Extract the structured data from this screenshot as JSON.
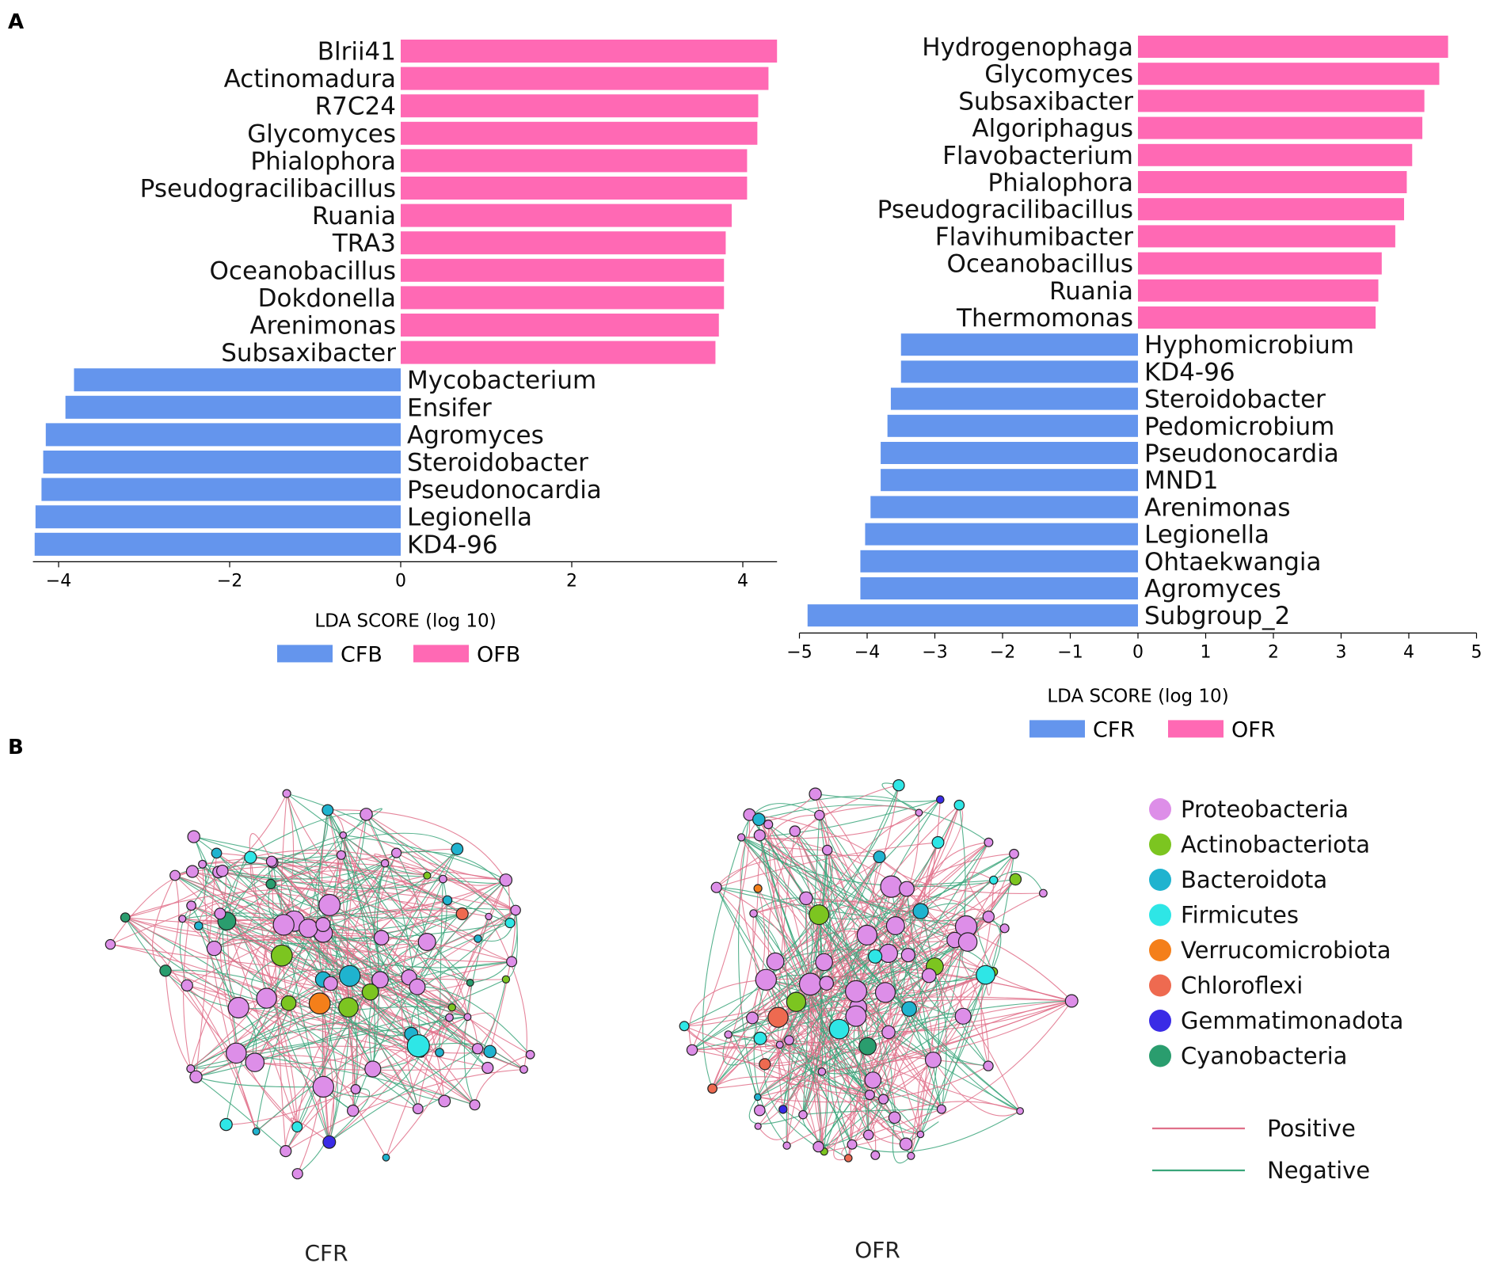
{
  "panel_labels": {
    "a": "A",
    "b": "B"
  },
  "colors": {
    "negative_bar": "#6495ED",
    "positive_bar": "#FF69B4",
    "positive_edge": "#E0708A",
    "negative_edge": "#3AA57A"
  },
  "chart_data": [
    {
      "type": "bar",
      "orientation": "horizontal",
      "title": "",
      "xlabel": "LDA SCORE (log 10)",
      "xlim": [
        -4.3,
        4.4
      ],
      "xticks": [
        -4,
        -2,
        0,
        2,
        4
      ],
      "xtick_labels": [
        "−4",
        "−2",
        "0",
        "2",
        "4"
      ],
      "legend": [
        {
          "label": "CFB",
          "color": "#6495ED"
        },
        {
          "label": "OFB",
          "color": "#FF69B4"
        }
      ],
      "bars": [
        {
          "label": "Blrii41",
          "value": 4.4,
          "group": "OFB"
        },
        {
          "label": "Actinomadura",
          "value": 4.3,
          "group": "OFB"
        },
        {
          "label": "R7C24",
          "value": 4.18,
          "group": "OFB"
        },
        {
          "label": "Glycomyces",
          "value": 4.17,
          "group": "OFB"
        },
        {
          "label": "Phialophora",
          "value": 4.05,
          "group": "OFB"
        },
        {
          "label": "Pseudogracilibacillus",
          "value": 4.05,
          "group": "OFB"
        },
        {
          "label": "Ruania",
          "value": 3.87,
          "group": "OFB"
        },
        {
          "label": "TRA3",
          "value": 3.8,
          "group": "OFB"
        },
        {
          "label": "Oceanobacillus",
          "value": 3.78,
          "group": "OFB"
        },
        {
          "label": "Dokdonella",
          "value": 3.78,
          "group": "OFB"
        },
        {
          "label": "Arenimonas",
          "value": 3.72,
          "group": "OFB"
        },
        {
          "label": "Subsaxibacter",
          "value": 3.68,
          "group": "OFB"
        },
        {
          "label": "Mycobacterium",
          "value": -3.82,
          "group": "CFB"
        },
        {
          "label": "Ensifer",
          "value": -3.92,
          "group": "CFB"
        },
        {
          "label": "Agromyces",
          "value": -4.15,
          "group": "CFB"
        },
        {
          "label": "Steroidobacter",
          "value": -4.18,
          "group": "CFB"
        },
        {
          "label": "Pseudonocardia",
          "value": -4.2,
          "group": "CFB"
        },
        {
          "label": "Legionella",
          "value": -4.27,
          "group": "CFB"
        },
        {
          "label": "KD4-96",
          "value": -4.28,
          "group": "CFB"
        }
      ]
    },
    {
      "type": "bar",
      "orientation": "horizontal",
      "title": "",
      "xlabel": "LDA SCORE (log 10)",
      "xlim": [
        -5.0,
        5.0
      ],
      "xticks": [
        -5,
        -4,
        -3,
        -2,
        -1,
        0,
        1,
        2,
        3,
        4,
        5
      ],
      "xtick_labels": [
        "−5",
        "−4",
        "−3",
        "−2",
        "−1",
        "0",
        "1",
        "2",
        "3",
        "4",
        "5"
      ],
      "legend": [
        {
          "label": "CFR",
          "color": "#6495ED"
        },
        {
          "label": "OFR",
          "color": "#FF69B4"
        }
      ],
      "bars": [
        {
          "label": "Hydrogenophaga",
          "value": 4.58,
          "group": "OFR"
        },
        {
          "label": "Glycomyces",
          "value": 4.45,
          "group": "OFR"
        },
        {
          "label": "Subsaxibacter",
          "value": 4.23,
          "group": "OFR"
        },
        {
          "label": "Algoriphagus",
          "value": 4.2,
          "group": "OFR"
        },
        {
          "label": "Flavobacterium",
          "value": 4.05,
          "group": "OFR"
        },
        {
          "label": "Phialophora",
          "value": 3.97,
          "group": "OFR"
        },
        {
          "label": "Pseudogracilibacillus",
          "value": 3.93,
          "group": "OFR"
        },
        {
          "label": "Flavihumibacter",
          "value": 3.8,
          "group": "OFR"
        },
        {
          "label": "Oceanobacillus",
          "value": 3.6,
          "group": "OFR"
        },
        {
          "label": "Ruania",
          "value": 3.55,
          "group": "OFR"
        },
        {
          "label": "Thermomonas",
          "value": 3.51,
          "group": "OFR"
        },
        {
          "label": "Hyphomicrobium",
          "value": -3.5,
          "group": "CFR"
        },
        {
          "label": "KD4-96",
          "value": -3.5,
          "group": "CFR"
        },
        {
          "label": "Steroidobacter",
          "value": -3.65,
          "group": "CFR"
        },
        {
          "label": "Pedomicrobium",
          "value": -3.7,
          "group": "CFR"
        },
        {
          "label": "Pseudonocardia",
          "value": -3.8,
          "group": "CFR"
        },
        {
          "label": "MND1",
          "value": -3.8,
          "group": "CFR"
        },
        {
          "label": "Arenimonas",
          "value": -3.95,
          "group": "CFR"
        },
        {
          "label": "Legionella",
          "value": -4.03,
          "group": "CFR"
        },
        {
          "label": "Ohtaekwangia",
          "value": -4.1,
          "group": "CFR"
        },
        {
          "label": "Agromyces",
          "value": -4.1,
          "group": "CFR"
        },
        {
          "label": "Subgroup_2",
          "value": -4.88,
          "group": "CFR"
        }
      ]
    }
  ],
  "networks": [
    {
      "label": "CFR"
    },
    {
      "label": "OFR"
    }
  ],
  "network_legend": {
    "phyla": [
      {
        "name": "Proteobacteria",
        "color": "#DD8EE8"
      },
      {
        "name": "Actinobacteriota",
        "color": "#7CC520"
      },
      {
        "name": "Bacteroidota",
        "color": "#1FB3CF"
      },
      {
        "name": "Firmicutes",
        "color": "#2EE6E6"
      },
      {
        "name": "Verrucomicrobiota",
        "color": "#F47F1A"
      },
      {
        "name": "Chloroflexi",
        "color": "#EE6A50"
      },
      {
        "name": "Gemmatimonadota",
        "color": "#3A2BE6"
      },
      {
        "name": "Cyanobacteria",
        "color": "#2A9D6E"
      }
    ],
    "edges": [
      {
        "name": "Positive",
        "color": "#E0708A"
      },
      {
        "name": "Negative",
        "color": "#3AA57A"
      }
    ]
  }
}
